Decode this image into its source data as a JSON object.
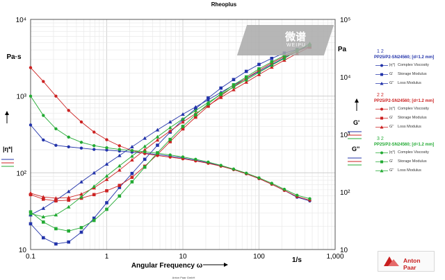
{
  "chart_data": {
    "type": "line",
    "title": "Rheoplus",
    "xlabel": "Angular Frequency ω",
    "x_unit": "1/s",
    "ylabel_left": "|η*|",
    "ylabel_left_unit": "Pa·s",
    "ylabel_right_1": "G'",
    "ylabel_right_2": "G''",
    "ylabel_right_unit": "Pa",
    "xscale": "log",
    "yscale": "log",
    "xlim": [
      0.1,
      1000
    ],
    "ylim_left": [
      10,
      10000
    ],
    "ylim_right": [
      10,
      100000
    ],
    "x_ticks": [
      "0.1",
      "1",
      "10",
      "100",
      "1,000"
    ],
    "y_ticks_left": [
      "10",
      "10²",
      "10³",
      "10⁴"
    ],
    "y_ticks_right": [
      "10",
      "10²",
      "10³",
      "10⁴",
      "10⁵"
    ],
    "grid": true,
    "x": [
      0.1,
      0.147,
      0.215,
      0.316,
      0.464,
      0.681,
      1.0,
      1.47,
      2.15,
      3.16,
      4.64,
      6.81,
      10,
      14.7,
      21.5,
      31.6,
      46.4,
      68.1,
      100,
      147,
      215,
      316,
      464
    ],
    "series": [
      {
        "name": "Complex Viscosity",
        "sample": "1 2",
        "color": "#2233aa",
        "marker": "circle",
        "axis": "left",
        "values": [
          420,
          268,
          228,
          218,
          210,
          202,
          198,
          192,
          186,
          180,
          173,
          165,
          156,
          146,
          135,
          123,
          110,
          97,
          84,
          71,
          59,
          48,
          43
        ]
      },
      {
        "name": "Storage Modulus",
        "sample": "1 2",
        "color": "#2233aa",
        "marker": "square",
        "axis": "right",
        "values": [
          28,
          16,
          12.5,
          13.5,
          20,
          35,
          65,
          120,
          210,
          370,
          650,
          1100,
          1800,
          2800,
          4300,
          6400,
          9000,
          12500,
          16500,
          21000,
          26000,
          30000,
          33000
        ]
      },
      {
        "name": "Loss Modulus",
        "sample": "1 2",
        "color": "#2233aa",
        "marker": "triangle",
        "axis": "right",
        "values": [
          40,
          52,
          72,
          102,
          150,
          215,
          305,
          430,
          610,
          860,
          1200,
          1650,
          2250,
          3000,
          4000,
          5400,
          7200,
          9400,
          12500,
          16500,
          21500,
          28000,
          36000
        ]
      },
      {
        "name": "Complex Viscosity",
        "sample": "2 2",
        "color": "#cc2222",
        "marker": "circle",
        "axis": "left",
        "values": [
          2350,
          1550,
          1000,
          650,
          460,
          340,
          270,
          225,
          195,
          178,
          168,
          160,
          152,
          143,
          133,
          122,
          110,
          97,
          84,
          71,
          59,
          49,
          44
        ]
      },
      {
        "name": "Storage Modulus",
        "sample": "2 2",
        "color": "#cc2222",
        "marker": "square",
        "axis": "right",
        "values": [
          90,
          75,
          70,
          72,
          78,
          90,
          105,
          130,
          180,
          280,
          450,
          750,
          1250,
          2000,
          3100,
          4700,
          6800,
          9500,
          13000,
          17500,
          22500,
          28000,
          34000
        ]
      },
      {
        "name": "Loss Modulus",
        "sample": "2 2",
        "color": "#cc2222",
        "marker": "triangle",
        "axis": "right",
        "values": [
          95,
          82,
          78,
          80,
          92,
          118,
          165,
          240,
          360,
          540,
          800,
          1150,
          1650,
          2300,
          3200,
          4400,
          6000,
          8100,
          11000,
          14800,
          19500,
          25500,
          33000
        ]
      },
      {
        "name": "Complex Viscosity",
        "sample": "3 2",
        "color": "#22aa33",
        "marker": "circle",
        "axis": "left",
        "values": [
          1000,
          560,
          375,
          292,
          250,
          226,
          212,
          202,
          195,
          188,
          180,
          171,
          161,
          150,
          138,
          125,
          112,
          99,
          86,
          73,
          61,
          51,
          46
        ]
      },
      {
        "name": "Storage Modulus",
        "sample": "3 2",
        "color": "#22aa33",
        "marker": "square",
        "axis": "right",
        "values": [
          45,
          30,
          23,
          21,
          24,
          32,
          50,
          85,
          150,
          270,
          480,
          820,
          1380,
          2200,
          3400,
          5100,
          7300,
          10000,
          13800,
          18300,
          23500,
          29500,
          35500
        ]
      },
      {
        "name": "Loss Modulus",
        "sample": "3 2",
        "color": "#22aa33",
        "marker": "triangle",
        "axis": "right",
        "values": [
          42,
          37,
          40,
          55,
          82,
          125,
          190,
          285,
          420,
          620,
          910,
          1320,
          1860,
          2600,
          3600,
          4950,
          6700,
          8900,
          12000,
          16000,
          21000,
          28000,
          38000
        ]
      }
    ],
    "legend": {
      "position": "right",
      "groups": [
        {
          "number": "1 2",
          "title": "PP25/P2-SN24560; [d=1.2 mm]",
          "color": "#2233aa",
          "items": [
            {
              "name": "|η*|",
              "text": "Complex Viscosity"
            },
            {
              "name": "G'",
              "text": "Storage Modulus"
            },
            {
              "name": "G''",
              "text": "Loss Modulus"
            }
          ]
        },
        {
          "number": "2 2",
          "title": "PP25/P2-SN24560; [d=1.2 mm]",
          "color": "#cc2222",
          "items": [
            {
              "name": "|η*|",
              "text": "Complex Viscosity"
            },
            {
              "name": "G'",
              "text": "Storage Modulus"
            },
            {
              "name": "G''",
              "text": "Loss Modulus"
            }
          ]
        },
        {
          "number": "3 2",
          "title": "PP25/P2-SN24560; [d=1.2 mm]",
          "color": "#22aa33",
          "items": [
            {
              "name": "|η*|",
              "text": "Complex Viscosity"
            },
            {
              "name": "G'",
              "text": "Storage Modulus"
            },
            {
              "name": "G''",
              "text": "Loss Modulus"
            }
          ]
        }
      ]
    },
    "footer": "Anton Paar GmbH"
  },
  "watermark": {
    "text": "微谱",
    "sub": "WEIPU"
  },
  "logo": {
    "text": "Anton Paar",
    "color": "#c81e1e"
  }
}
